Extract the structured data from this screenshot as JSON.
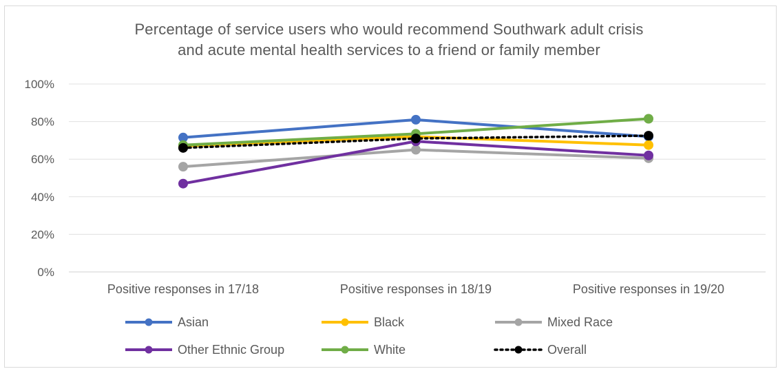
{
  "chart_data": {
    "type": "line",
    "title": "Percentage of service users who would recommend Southwark adult crisis and acute mental health services to a friend or family member",
    "title_lines": [
      "Percentage of service users who would recommend Southwark adult crisis",
      "and acute mental health services to a friend or family member"
    ],
    "categories": [
      "Positive responses in 17/18",
      "Positive responses in 18/19",
      "Positive responses in 19/20"
    ],
    "yticks": [
      "0%",
      "20%",
      "40%",
      "60%",
      "80%",
      "100%"
    ],
    "ylim": [
      0,
      100
    ],
    "grid": true,
    "legend_position": "bottom",
    "series": [
      {
        "name": "Asian",
        "values": [
          71.5,
          81,
          72
        ],
        "color": "#4472c4",
        "style": "solid"
      },
      {
        "name": "Black",
        "values": [
          67,
          72,
          67.5
        ],
        "color": "#ffc000",
        "style": "solid"
      },
      {
        "name": "Mixed Race",
        "values": [
          56,
          65,
          60.5
        ],
        "color": "#a5a5a5",
        "style": "solid"
      },
      {
        "name": "Other Ethnic Group",
        "values": [
          47,
          69.5,
          62
        ],
        "color": "#7030a0",
        "style": "solid"
      },
      {
        "name": "White",
        "values": [
          67.5,
          73.5,
          81.5
        ],
        "color": "#70ad47",
        "style": "solid"
      },
      {
        "name": "Overall",
        "values": [
          66,
          71,
          72.5
        ],
        "color": "#000000",
        "style": "dotted"
      }
    ]
  }
}
